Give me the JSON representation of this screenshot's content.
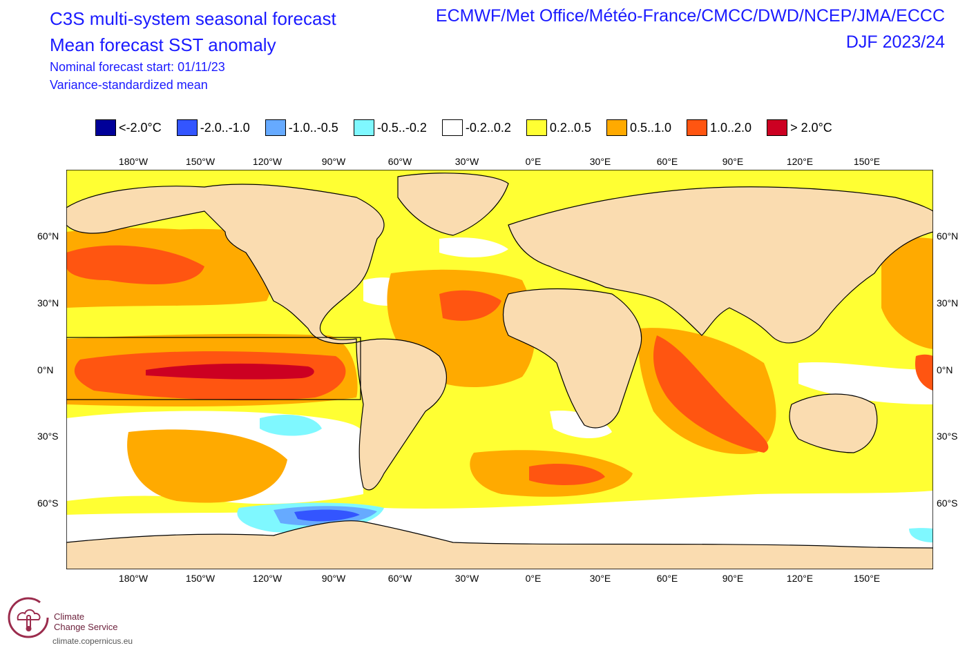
{
  "header": {
    "title_line1": "C3S multi-system seasonal forecast",
    "title_line2": "Mean forecast SST anomaly",
    "sub_line1": "Nominal forecast start: 01/11/23",
    "sub_line2": "Variance-standardized mean",
    "systems": "ECMWF/Met Office/Météo-France/CMCC/DWD/NCEP/JMA/ECCC",
    "season": "DJF 2023/24"
  },
  "legend": [
    {
      "label": "<-2.0°C",
      "color": "#000099"
    },
    {
      "label": "-2.0..-1.0",
      "color": "#3355ff"
    },
    {
      "label": "-1.0..-0.5",
      "color": "#66aaff"
    },
    {
      "label": "-0.5..-0.2",
      "color": "#7ff8ff"
    },
    {
      "label": "-0.2..0.2",
      "color": "#ffffff"
    },
    {
      "label": "0.2..0.5",
      "color": "#ffff33"
    },
    {
      "label": "0.5..1.0",
      "color": "#ffaa00"
    },
    {
      "label": "1.0..2.0",
      "color": "#ff5511"
    },
    {
      "label": "> 2.0°C",
      "color": "#cc0022"
    }
  ],
  "lon_ticks": [
    "180°W",
    "150°W",
    "120°W",
    "90°W",
    "60°W",
    "30°W",
    "0°E",
    "30°E",
    "60°E",
    "90°E",
    "120°E",
    "150°E"
  ],
  "lat_ticks": [
    "60°N",
    "30°N",
    "0°N",
    "30°S",
    "60°S"
  ],
  "colors": {
    "land": "#fadcb0",
    "title_blue": "#1a1aff"
  },
  "logo": {
    "line1": "Climate",
    "line2": "Change Service",
    "url": "climate.copernicus.eu"
  }
}
